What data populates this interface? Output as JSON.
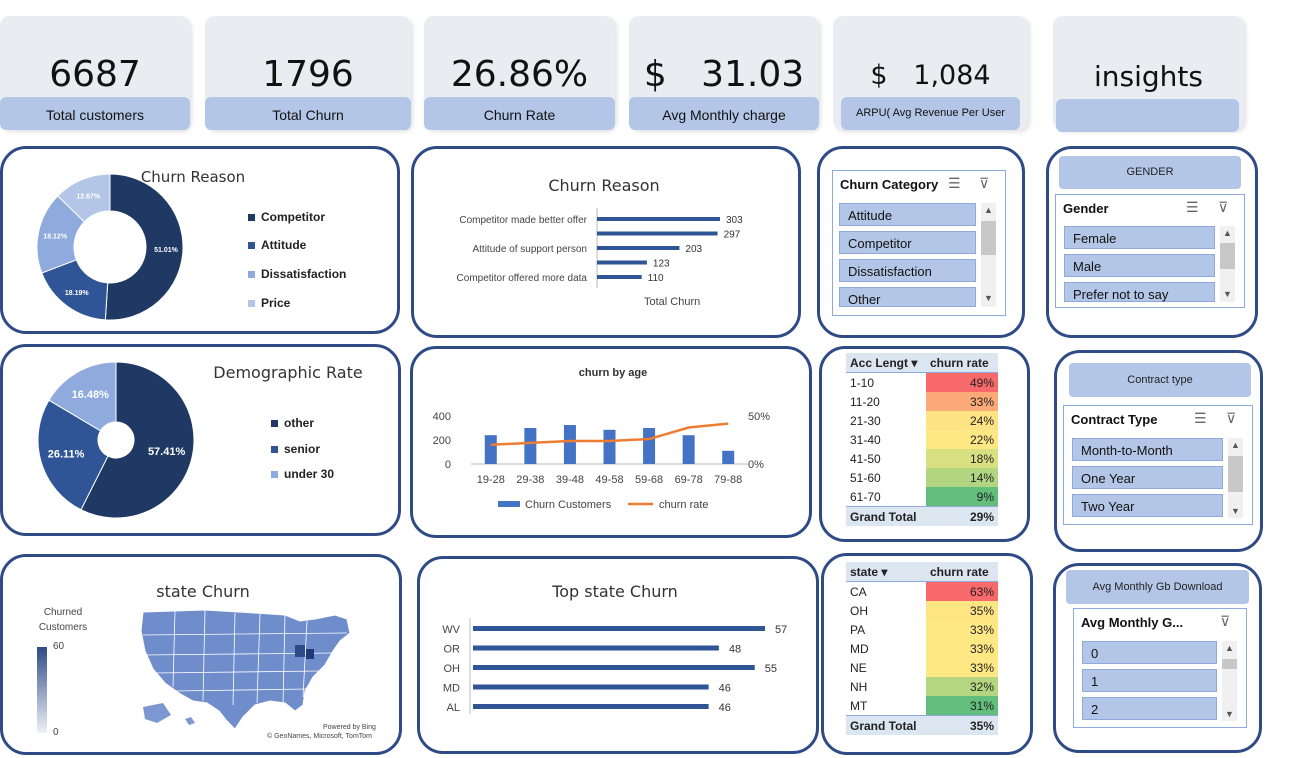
{
  "kpis": {
    "total_customers": {
      "value": "6687",
      "label": "Total customers"
    },
    "total_churn": {
      "value": "1796",
      "label": "Total Churn"
    },
    "churn_rate": {
      "value": "26.86%",
      "label": "Churn Rate"
    },
    "avg_monthly_charge": {
      "value": "$   31.03",
      "label": "Avg Monthly charge"
    },
    "arpu": {
      "value": "$   1,084",
      "label": "ARPU( Avg Revenue  Per User"
    },
    "insights": {
      "value": "insights",
      "label": ""
    }
  },
  "churn_reason_donut": {
    "title": "Churn  Reason",
    "legend": [
      "Competitor",
      "Attitude",
      "Dissatisfaction",
      "Price"
    ],
    "colors": [
      "#1f3864",
      "#2f5597",
      "#8faadc",
      "#b4c6e7"
    ]
  },
  "churn_reason_bar": {
    "title": "Churn Reason",
    "xlabel": "Total Churn",
    "bar_labels": [
      "Competitor made better offer",
      "",
      "Attitude of support person",
      "",
      "Competitor offered more data"
    ]
  },
  "demographic": {
    "title": "Demographic Rate",
    "legend": [
      "other",
      "senior",
      "under 30"
    ],
    "colors": [
      "#1f3864",
      "#2f5597",
      "#8faadc"
    ]
  },
  "churn_by_age": {
    "title": "churn by age",
    "yticks_left": [
      "400",
      "200",
      "0"
    ],
    "yticks_right": [
      "50%",
      "0%"
    ],
    "legend_bar": "Churn Customers",
    "legend_line": "churn rate"
  },
  "state_map": {
    "title": "state Churn",
    "legend_title": "Churned Customers",
    "legend_max": "60",
    "legend_min": "0",
    "credit1": "Powered by Bing",
    "credit2": "© GeoNames, Microsoft, TomTom"
  },
  "top_state": {
    "title": "Top state Churn"
  },
  "slicer_churn_category": {
    "header": "Churn Category",
    "items": [
      "Attitude",
      "Competitor",
      "Dissatisfaction",
      "Other"
    ]
  },
  "slicer_gender": {
    "label": "GENDER",
    "header": "Gender",
    "items": [
      "Female",
      "Male",
      "Prefer not to say"
    ]
  },
  "slicer_contract": {
    "label": "Contract type",
    "header": "Contract Type",
    "items": [
      "Month-to-Month",
      "One Year",
      "Two Year"
    ]
  },
  "slicer_gb": {
    "label": "Avg Monthly Gb Download",
    "header": "Avg Monthly G...",
    "items": [
      "0",
      "1",
      "2"
    ]
  },
  "pivot_acc": {
    "col1": "Acc Lengt",
    "col2": "churn rate",
    "rows": [
      {
        "k": "1-10",
        "v": "49%",
        "c": "#f8696b"
      },
      {
        "k": "11-20",
        "v": "33%",
        "c": "#fbaa77"
      },
      {
        "k": "21-30",
        "v": "24%",
        "c": "#fee382"
      },
      {
        "k": "31-40",
        "v": "22%",
        "c": "#fee883"
      },
      {
        "k": "41-50",
        "v": "18%",
        "c": "#d8e082"
      },
      {
        "k": "51-60",
        "v": "14%",
        "c": "#b1d580"
      },
      {
        "k": "61-70",
        "v": "9%",
        "c": "#63be7b"
      }
    ],
    "total_label": "Grand Total",
    "total": "29%"
  },
  "pivot_state": {
    "col1": "state",
    "col2": "churn rate",
    "rows": [
      {
        "k": "CA",
        "v": "63%",
        "c": "#f8696b"
      },
      {
        "k": "OH",
        "v": "35%",
        "c": "#fee582"
      },
      {
        "k": "PA",
        "v": "33%",
        "c": "#fee883"
      },
      {
        "k": "MD",
        "v": "33%",
        "c": "#fee883"
      },
      {
        "k": "NE",
        "v": "33%",
        "c": "#fee883"
      },
      {
        "k": "NH",
        "v": "32%",
        "c": "#b5d680"
      },
      {
        "k": "MT",
        "v": "31%",
        "c": "#63be7b"
      }
    ],
    "total_label": "Grand Total",
    "total": "35%"
  },
  "chart_data": [
    {
      "type": "pie",
      "title": "Churn  Reason",
      "categories": [
        "Competitor",
        "Attitude",
        "Dissatisfaction",
        "Price"
      ],
      "values": [
        51.01,
        18.19,
        18.12,
        12.67
      ],
      "labels": [
        "51.01%",
        "18.19%",
        "18.12%",
        "12.67%"
      ]
    },
    {
      "type": "bar",
      "title": "Churn Reason",
      "xlabel": "Total Churn",
      "categories": [
        "Competitor made better offer",
        "",
        "Attitude of support person",
        "",
        "Competitor offered more data"
      ],
      "values": [
        303,
        297,
        203,
        123,
        110
      ]
    },
    {
      "type": "pie",
      "title": "Demographic Rate",
      "categories": [
        "other",
        "senior",
        "under 30"
      ],
      "values": [
        57.41,
        26.11,
        16.48
      ],
      "labels": [
        "57.41%",
        "26.11%",
        "16.48%"
      ]
    },
    {
      "type": "bar",
      "title": "churn by age",
      "categories": [
        "19-28",
        "29-38",
        "39-48",
        "49-58",
        "59-68",
        "69-78",
        "79-88"
      ],
      "series": [
        {
          "name": "Churn Customers",
          "values": [
            240,
            300,
            325,
            285,
            300,
            240,
            110
          ]
        },
        {
          "name": "churn rate",
          "values": [
            0.2,
            0.22,
            0.24,
            0.24,
            0.26,
            0.38,
            0.42
          ]
        }
      ],
      "ylim": [
        0,
        400
      ],
      "y2lim": [
        0,
        0.5
      ]
    },
    {
      "type": "bar",
      "title": "Top state Churn",
      "categories": [
        "WV",
        "OR",
        "OH",
        "MD",
        "AL"
      ],
      "values": [
        57,
        48,
        55,
        46,
        46
      ]
    }
  ]
}
